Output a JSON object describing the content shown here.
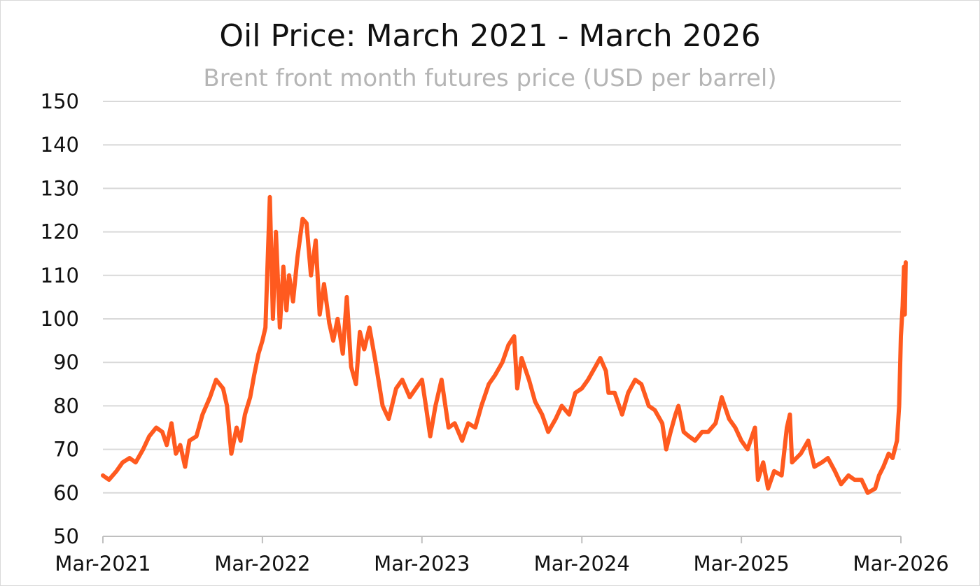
{
  "chart_data": {
    "type": "line",
    "title": "Oil Price: March 2021 - March 2026",
    "subtitle": "Brent front month futures price (USD per barrel)",
    "xlabel": "",
    "ylabel": "",
    "ylim": [
      50,
      150
    ],
    "y_ticks": [
      50,
      60,
      70,
      80,
      90,
      100,
      110,
      120,
      130,
      140,
      150
    ],
    "x_range": [
      "2021-03",
      "2026-03"
    ],
    "x_tick_labels": [
      "Mar-2021",
      "Mar-2022",
      "Mar-2023",
      "Mar-2024",
      "Mar-2025",
      "Mar-2026"
    ],
    "x_tick_dates": [
      "2021-03",
      "2022-03",
      "2023-03",
      "2024-03",
      "2025-03",
      "2026-03"
    ],
    "grid": "horizontal",
    "line_color": "#FF5A1F",
    "series": [
      {
        "name": "",
        "points": [
          [
            "2021-03-01",
            64
          ],
          [
            "2021-03-15",
            63
          ],
          [
            "2021-04-01",
            65
          ],
          [
            "2021-04-15",
            67
          ],
          [
            "2021-05-01",
            68
          ],
          [
            "2021-05-15",
            67
          ],
          [
            "2021-06-01",
            70
          ],
          [
            "2021-06-15",
            73
          ],
          [
            "2021-07-01",
            75
          ],
          [
            "2021-07-15",
            74
          ],
          [
            "2021-07-25",
            71
          ],
          [
            "2021-08-05",
            76
          ],
          [
            "2021-08-15",
            69
          ],
          [
            "2021-08-25",
            71
          ],
          [
            "2021-09-05",
            66
          ],
          [
            "2021-09-15",
            72
          ],
          [
            "2021-10-01",
            73
          ],
          [
            "2021-10-15",
            78
          ],
          [
            "2021-11-01",
            82
          ],
          [
            "2021-11-15",
            86
          ],
          [
            "2021-12-01",
            84
          ],
          [
            "2021-12-10",
            80
          ],
          [
            "2021-12-20",
            69
          ],
          [
            "2022-01-01",
            75
          ],
          [
            "2022-01-10",
            72
          ],
          [
            "2022-01-20",
            78
          ],
          [
            "2022-02-01",
            82
          ],
          [
            "2022-02-10",
            87
          ],
          [
            "2022-02-20",
            92
          ],
          [
            "2022-03-01",
            95
          ],
          [
            "2022-03-08",
            98
          ],
          [
            "2022-03-12",
            110
          ],
          [
            "2022-03-18",
            128
          ],
          [
            "2022-03-25",
            100
          ],
          [
            "2022-04-01",
            120
          ],
          [
            "2022-04-10",
            98
          ],
          [
            "2022-04-18",
            112
          ],
          [
            "2022-04-25",
            102
          ],
          [
            "2022-05-01",
            110
          ],
          [
            "2022-05-10",
            104
          ],
          [
            "2022-05-20",
            114
          ],
          [
            "2022-06-01",
            123
          ],
          [
            "2022-06-10",
            122
          ],
          [
            "2022-06-20",
            110
          ],
          [
            "2022-07-01",
            118
          ],
          [
            "2022-07-10",
            101
          ],
          [
            "2022-07-20",
            108
          ],
          [
            "2022-08-01",
            99
          ],
          [
            "2022-08-10",
            95
          ],
          [
            "2022-08-20",
            100
          ],
          [
            "2022-09-01",
            92
          ],
          [
            "2022-09-10",
            105
          ],
          [
            "2022-09-20",
            89
          ],
          [
            "2022-10-01",
            85
          ],
          [
            "2022-10-10",
            97
          ],
          [
            "2022-10-20",
            93
          ],
          [
            "2022-11-01",
            98
          ],
          [
            "2022-11-15",
            90
          ],
          [
            "2022-12-01",
            80
          ],
          [
            "2022-12-15",
            77
          ],
          [
            "2023-01-01",
            84
          ],
          [
            "2023-01-15",
            86
          ],
          [
            "2023-02-01",
            82
          ],
          [
            "2023-02-15",
            84
          ],
          [
            "2023-03-01",
            86
          ],
          [
            "2023-03-10",
            80
          ],
          [
            "2023-03-20",
            73
          ],
          [
            "2023-04-01",
            80
          ],
          [
            "2023-04-15",
            86
          ],
          [
            "2023-05-01",
            75
          ],
          [
            "2023-05-15",
            76
          ],
          [
            "2023-06-01",
            72
          ],
          [
            "2023-06-15",
            76
          ],
          [
            "2023-07-01",
            75
          ],
          [
            "2023-07-15",
            80
          ],
          [
            "2023-08-01",
            85
          ],
          [
            "2023-08-15",
            87
          ],
          [
            "2023-09-01",
            90
          ],
          [
            "2023-09-15",
            94
          ],
          [
            "2023-09-28",
            96
          ],
          [
            "2023-10-05",
            84
          ],
          [
            "2023-10-15",
            91
          ],
          [
            "2023-11-01",
            86
          ],
          [
            "2023-11-15",
            81
          ],
          [
            "2023-12-01",
            78
          ],
          [
            "2023-12-15",
            74
          ],
          [
            "2024-01-01",
            77
          ],
          [
            "2024-01-15",
            80
          ],
          [
            "2024-02-01",
            78
          ],
          [
            "2024-02-15",
            83
          ],
          [
            "2024-03-01",
            84
          ],
          [
            "2024-03-15",
            86
          ],
          [
            "2024-04-01",
            89
          ],
          [
            "2024-04-12",
            91
          ],
          [
            "2024-04-25",
            88
          ],
          [
            "2024-05-01",
            83
          ],
          [
            "2024-05-15",
            83
          ],
          [
            "2024-06-01",
            78
          ],
          [
            "2024-06-15",
            83
          ],
          [
            "2024-07-01",
            86
          ],
          [
            "2024-07-15",
            85
          ],
          [
            "2024-08-01",
            80
          ],
          [
            "2024-08-15",
            79
          ],
          [
            "2024-09-01",
            76
          ],
          [
            "2024-09-10",
            70
          ],
          [
            "2024-09-20",
            74
          ],
          [
            "2024-10-01",
            78
          ],
          [
            "2024-10-08",
            80
          ],
          [
            "2024-10-20",
            74
          ],
          [
            "2024-11-01",
            73
          ],
          [
            "2024-11-15",
            72
          ],
          [
            "2024-12-01",
            74
          ],
          [
            "2024-12-15",
            74
          ],
          [
            "2025-01-01",
            76
          ],
          [
            "2025-01-15",
            82
          ],
          [
            "2025-02-01",
            77
          ],
          [
            "2025-02-15",
            75
          ],
          [
            "2025-03-01",
            72
          ],
          [
            "2025-03-15",
            70
          ],
          [
            "2025-04-01",
            75
          ],
          [
            "2025-04-08",
            63
          ],
          [
            "2025-04-20",
            67
          ],
          [
            "2025-05-01",
            61
          ],
          [
            "2025-05-15",
            65
          ],
          [
            "2025-06-01",
            64
          ],
          [
            "2025-06-13",
            75
          ],
          [
            "2025-06-20",
            78
          ],
          [
            "2025-06-25",
            67
          ],
          [
            "2025-07-15",
            69
          ],
          [
            "2025-08-01",
            72
          ],
          [
            "2025-08-15",
            66
          ],
          [
            "2025-09-01",
            67
          ],
          [
            "2025-09-15",
            68
          ],
          [
            "2025-10-01",
            65
          ],
          [
            "2025-10-15",
            62
          ],
          [
            "2025-11-01",
            64
          ],
          [
            "2025-11-15",
            63
          ],
          [
            "2025-12-01",
            63
          ],
          [
            "2025-12-15",
            60
          ],
          [
            "2026-01-01",
            61
          ],
          [
            "2026-01-10",
            64
          ],
          [
            "2026-01-20",
            66
          ],
          [
            "2026-02-01",
            69
          ],
          [
            "2026-02-10",
            68
          ],
          [
            "2026-02-20",
            72
          ],
          [
            "2026-02-25",
            80
          ],
          [
            "2026-03-01",
            96
          ],
          [
            "2026-03-05",
            103
          ],
          [
            "2026-03-08",
            112
          ],
          [
            "2026-03-10",
            101
          ],
          [
            "2026-03-12",
            113
          ]
        ]
      }
    ]
  }
}
